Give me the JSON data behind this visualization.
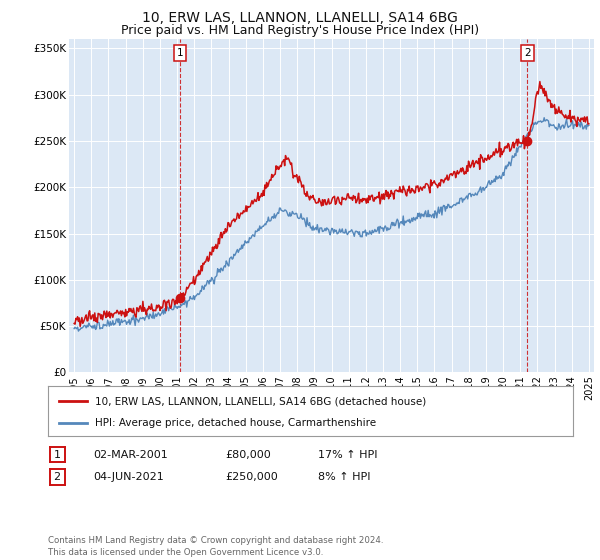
{
  "title": "10, ERW LAS, LLANNON, LLANELLI, SA14 6BG",
  "subtitle": "Price paid vs. HM Land Registry's House Price Index (HPI)",
  "title_fontsize": 10,
  "subtitle_fontsize": 9,
  "background_color": "#ffffff",
  "plot_bg_color": "#dce8f5",
  "grid_color": "#ffffff",
  "hpi_color": "#5588bb",
  "price_color": "#cc1111",
  "marker1_x": 2001.17,
  "marker1_y": 80000,
  "marker2_x": 2021.42,
  "marker2_y": 250000,
  "ylim": [
    0,
    360000
  ],
  "xlim_start": 1994.7,
  "xlim_end": 2025.3,
  "yticks": [
    0,
    50000,
    100000,
    150000,
    200000,
    250000,
    300000,
    350000
  ],
  "ytick_labels": [
    "£0",
    "£50K",
    "£100K",
    "£150K",
    "£200K",
    "£250K",
    "£300K",
    "£350K"
  ],
  "xticks": [
    1995,
    1996,
    1997,
    1998,
    1999,
    2000,
    2001,
    2002,
    2003,
    2004,
    2005,
    2006,
    2007,
    2008,
    2009,
    2010,
    2011,
    2012,
    2013,
    2014,
    2015,
    2016,
    2017,
    2018,
    2019,
    2020,
    2021,
    2022,
    2023,
    2024,
    2025
  ],
  "legend_label_price": "10, ERW LAS, LLANNON, LLANELLI, SA14 6BG (detached house)",
  "legend_label_hpi": "HPI: Average price, detached house, Carmarthenshire",
  "note1_date": "02-MAR-2001",
  "note1_price": "£80,000",
  "note1_hpi": "17% ↑ HPI",
  "note2_date": "04-JUN-2021",
  "note2_price": "£250,000",
  "note2_hpi": "8% ↑ HPI",
  "footer": "Contains HM Land Registry data © Crown copyright and database right 2024.\nThis data is licensed under the Open Government Licence v3.0."
}
